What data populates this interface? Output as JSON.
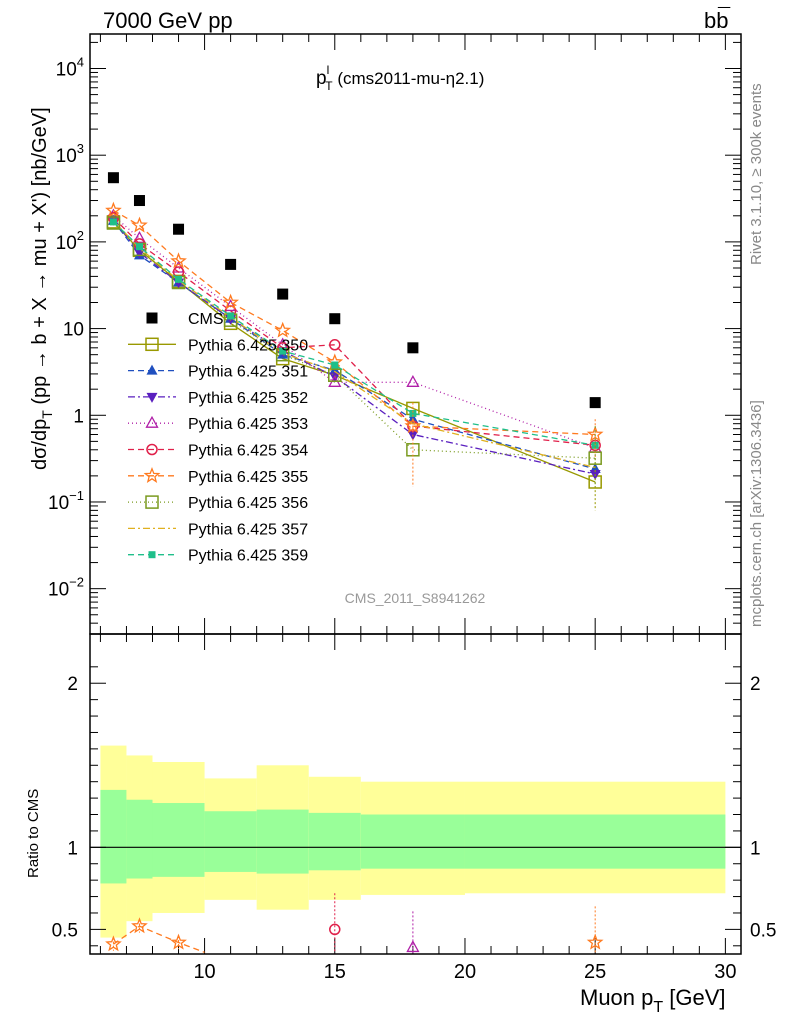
{
  "header": {
    "left": "7000 GeV pp",
    "right": "bb",
    "right_overline": "¯"
  },
  "side_labels": {
    "rivet": "Rivet 3.1.10, ≥ 300k events",
    "mcplots": "mcplots.cern.ch [arXiv:1306.3436]"
  },
  "plot_title": {
    "main": "p",
    "sup": "l",
    "sub": "T",
    "rest": " (cms2011-mu-η2.1)"
  },
  "analysis_label": "CMS_2011_S8941262",
  "colors": {
    "cms": "#000000",
    "band_inner": "#99ff99",
    "band_outer": "#ffff99"
  },
  "chart_data": {
    "type": "scatter",
    "xlabel": "Muon p",
    "xlabel_sub": "T",
    "xlabel_unit": " [GeV]",
    "ylabel_main": "dσ/dp",
    "ylabel_sub": "T",
    "ylabel_rest": "  (pp → b + X → mu + X') [nb/GeV]",
    "ratio_ylabel": "Ratio to CMS",
    "xlim": [
      5.6,
      30.6
    ],
    "ylim_log": [
      0.003,
      25000
    ],
    "ratio_ylim": [
      0.35,
      2.3
    ],
    "y_log": true,
    "x_ticks": [
      10,
      15,
      20,
      25,
      30
    ],
    "y_ticks": [
      {
        "value": 10000,
        "label": "10",
        "exp": "4"
      },
      {
        "value": 1000,
        "label": "10",
        "exp": "3"
      },
      {
        "value": 100,
        "label": "10",
        "exp": "2"
      },
      {
        "value": 10,
        "label": "10",
        "exp": ""
      },
      {
        "value": 1,
        "label": "1",
        "exp": ""
      },
      {
        "value": 0.1,
        "label": "10",
        "exp": "−1"
      },
      {
        "value": 0.01,
        "label": "10",
        "exp": "−2"
      }
    ],
    "ratio_ticks": [
      {
        "value": 0.5,
        "label": "0.5"
      },
      {
        "value": 1,
        "label": "1"
      },
      {
        "value": 2,
        "label": "2"
      }
    ],
    "bins": [
      {
        "lo": 6,
        "hi": 7,
        "inner": [
          0.78,
          1.35
        ],
        "outer": [
          0.45,
          1.62
        ]
      },
      {
        "lo": 7,
        "hi": 8,
        "inner": [
          0.81,
          1.29
        ],
        "outer": [
          0.55,
          1.56
        ]
      },
      {
        "lo": 8,
        "hi": 10,
        "inner": [
          0.82,
          1.27
        ],
        "outer": [
          0.6,
          1.52
        ]
      },
      {
        "lo": 10,
        "hi": 12,
        "inner": [
          0.85,
          1.22
        ],
        "outer": [
          0.68,
          1.42
        ]
      },
      {
        "lo": 12,
        "hi": 14,
        "inner": [
          0.84,
          1.23
        ],
        "outer": [
          0.62,
          1.5
        ]
      },
      {
        "lo": 14,
        "hi": 16,
        "inner": [
          0.86,
          1.21
        ],
        "outer": [
          0.68,
          1.43
        ]
      },
      {
        "lo": 16,
        "hi": 20,
        "inner": [
          0.87,
          1.2
        ],
        "outer": [
          0.71,
          1.4
        ]
      },
      {
        "lo": 20,
        "hi": 30,
        "inner": [
          0.87,
          1.2
        ],
        "outer": [
          0.72,
          1.4
        ]
      }
    ],
    "x": [
      6.5,
      7.5,
      9,
      11,
      13,
      15,
      18,
      25
    ],
    "cms": [
      550,
      300,
      140,
      55,
      25,
      13,
      6,
      1.4
    ],
    "series": [
      {
        "name": "Pythia 6.425 350",
        "color": "#999900",
        "marker": "square-open",
        "dash": "",
        "values": [
          170,
          80,
          35,
          11.5,
          4.5,
          2.9,
          1.2,
          0.17
        ]
      },
      {
        "name": "Pythia 6.425 351",
        "color": "#1f4fbf",
        "marker": "triangle-up",
        "dash": "6,4",
        "values": [
          175,
          70,
          34,
          13,
          5,
          3.3,
          0.9,
          0.24
        ]
      },
      {
        "name": "Pythia 6.425 352",
        "color": "#5a1fbf",
        "marker": "triangle-down",
        "dash": "7,3,2,3",
        "values": [
          180,
          75,
          34,
          13,
          5.5,
          2.8,
          0.6,
          0.21
        ]
      },
      {
        "name": "Pythia 6.425 353",
        "color": "#b01fa8",
        "marker": "triangle-open",
        "dash": "1,3",
        "values": [
          200,
          110,
          50,
          18,
          6.5,
          2.4,
          2.4,
          0.42
        ]
      },
      {
        "name": "Pythia 6.425 354",
        "color": "#e0204a",
        "marker": "circle-open",
        "dash": "6,4",
        "values": [
          190,
          95,
          45,
          16,
          6,
          6.5,
          0.75,
          0.45
        ]
      },
      {
        "name": "Pythia 6.425 355",
        "color": "#ff7a1f",
        "marker": "star",
        "dash": "6,4",
        "values": [
          230,
          155,
          60,
          20,
          9.5,
          4.1,
          0.75,
          0.6
        ]
      },
      {
        "name": "Pythia 6.425 356",
        "color": "#7a9a1f",
        "marker": "square-open",
        "dash": "1,3",
        "values": [
          165,
          82,
          34,
          12.5,
          5,
          2.9,
          0.4,
          0.32
        ]
      },
      {
        "name": "Pythia 6.425 357",
        "color": "#e0b01f",
        "marker": "none",
        "dash": "7,3,2,3",
        "values": [
          175,
          85,
          36,
          13.5,
          5.2,
          3.2,
          0.8,
          0.25
        ]
      },
      {
        "name": "Pythia 6.425 359",
        "color": "#1fbf8a",
        "marker": "square-small",
        "dash": "6,4",
        "values": [
          170,
          88,
          37,
          14,
          5.5,
          3.8,
          1.05,
          0.45
        ]
      }
    ],
    "legend": {
      "cms_label": "CMS",
      "position": "center-left"
    },
    "ratio_visible": [
      {
        "series": 5,
        "points": [
          [
            6.5,
            0.41
          ],
          [
            7.5,
            0.52
          ],
          [
            9,
            0.42
          ],
          [
            10,
            0.36
          ]
        ]
      },
      {
        "series": 4,
        "points": [
          [
            15,
            0.5
          ]
        ]
      },
      {
        "series": 3,
        "points": [
          [
            18,
            0.39
          ]
        ]
      },
      {
        "series": 5,
        "points": [
          [
            25,
            0.42
          ]
        ]
      }
    ]
  }
}
